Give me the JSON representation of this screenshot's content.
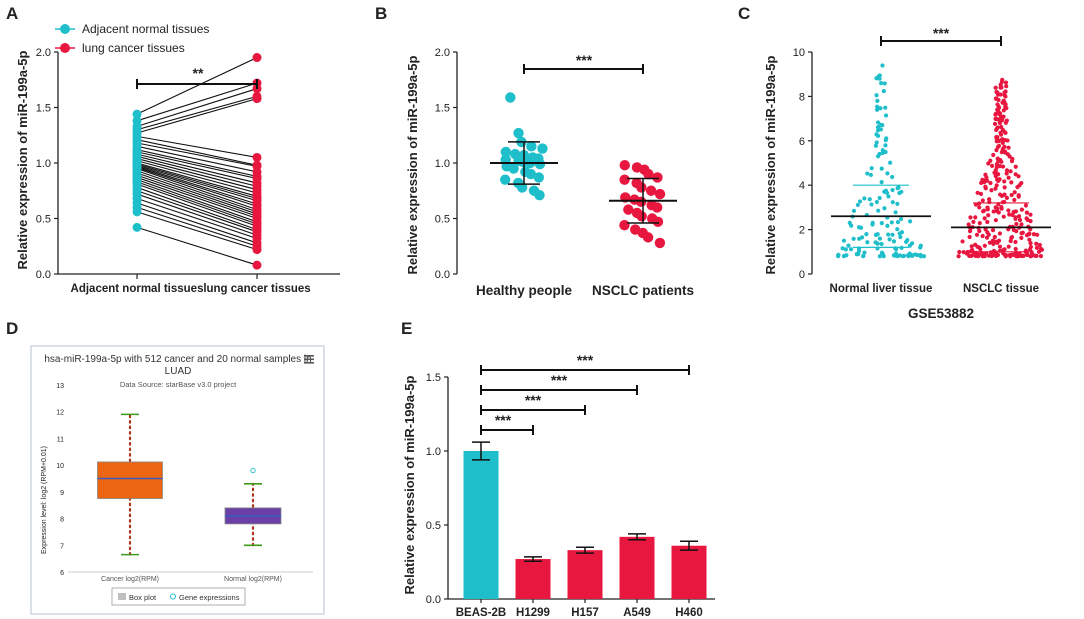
{
  "colors": {
    "teal": "#1ebfcb",
    "red": "#e8173f",
    "black": "#111111",
    "orange": "#ec6510",
    "purple": "#6a3fa6",
    "green": "#3f9a1a",
    "dotted_red": "#b0321b"
  },
  "chart_data": [
    {
      "panel": "A",
      "type": "scatter",
      "subtype": "paired",
      "ylabel": "Relative expression of miR-199a-5p",
      "ylim": [
        0,
        2.0
      ],
      "yticks": [
        "0.0",
        "0.5",
        "1.0",
        "1.5",
        "2.0"
      ],
      "categories": [
        "Adjacent normal tissues",
        "lung cancer tissues"
      ],
      "legend": [
        "Adjacent normal tissues",
        "lung cancer tissues"
      ],
      "significance": "**",
      "pairs": [
        [
          1.44,
          1.95
        ],
        [
          1.38,
          1.72
        ],
        [
          1.33,
          1.67
        ],
        [
          1.3,
          1.6
        ],
        [
          1.27,
          1.58
        ],
        [
          1.24,
          1.05
        ],
        [
          1.21,
          0.98
        ],
        [
          1.18,
          0.97
        ],
        [
          1.15,
          0.92
        ],
        [
          1.12,
          0.88
        ],
        [
          1.1,
          0.86
        ],
        [
          1.08,
          0.82
        ],
        [
          1.06,
          0.79
        ],
        [
          1.04,
          0.76
        ],
        [
          1.02,
          0.73
        ],
        [
          1.0,
          0.7
        ],
        [
          0.99,
          0.68
        ],
        [
          0.98,
          0.66
        ],
        [
          0.97,
          0.63
        ],
        [
          0.96,
          0.61
        ],
        [
          0.95,
          0.58
        ],
        [
          0.93,
          0.56
        ],
        [
          0.91,
          0.54
        ],
        [
          0.89,
          0.52
        ],
        [
          0.87,
          0.5
        ],
        [
          0.85,
          0.47
        ],
        [
          0.83,
          0.45
        ],
        [
          0.81,
          0.43
        ],
        [
          0.78,
          0.4
        ],
        [
          0.75,
          0.38
        ],
        [
          0.72,
          0.35
        ],
        [
          0.68,
          0.32
        ],
        [
          0.64,
          0.28
        ],
        [
          0.6,
          0.25
        ],
        [
          0.56,
          0.22
        ],
        [
          0.42,
          0.08
        ]
      ]
    },
    {
      "panel": "B",
      "type": "scatter",
      "ylabel": "Relative expression of miR-199a-5p",
      "ylim": [
        0,
        2.0
      ],
      "yticks": [
        "0.0",
        "0.5",
        "1.0",
        "1.5",
        "2.0"
      ],
      "categories": [
        "Healthy people",
        "NSCLC patients"
      ],
      "significance": "***",
      "series": [
        {
          "name": "Healthy people",
          "mean": 1.0,
          "sd": 0.19,
          "values": [
            1.59,
            1.27,
            1.19,
            1.15,
            1.13,
            1.1,
            1.08,
            1.07,
            1.05,
            1.04,
            1.03,
            1.02,
            1.01,
            1.0,
            0.99,
            0.97,
            0.95,
            0.92,
            0.9,
            0.87,
            0.85,
            0.82,
            0.78,
            0.75,
            0.71
          ]
        },
        {
          "name": "NSCLC patients",
          "mean": 0.66,
          "sd": 0.2,
          "values": [
            0.98,
            0.96,
            0.94,
            0.9,
            0.87,
            0.85,
            0.82,
            0.78,
            0.75,
            0.72,
            0.69,
            0.67,
            0.65,
            0.62,
            0.6,
            0.58,
            0.55,
            0.52,
            0.5,
            0.47,
            0.44,
            0.4,
            0.37,
            0.33,
            0.28
          ]
        }
      ]
    },
    {
      "panel": "C",
      "type": "scatter",
      "ylabel": "Relative expression of miR-199a-5p",
      "xlabel": "GSE53882",
      "ylim": [
        0,
        10
      ],
      "yticks": [
        "0",
        "2",
        "4",
        "6",
        "8",
        "10"
      ],
      "categories": [
        "Normal liver tissue",
        "NSCLC tissue"
      ],
      "significance": "***",
      "series": [
        {
          "name": "Normal liver tissue",
          "mean": 2.6,
          "sd": 1.4
        },
        {
          "name": "NSCLC tissue",
          "mean": 2.1,
          "sd": 1.1
        }
      ]
    },
    {
      "panel": "D",
      "type": "box",
      "title": "hsa-miR-199a-5p with 512 cancer and 20 normal samples in LUAD",
      "subtitle": "Data Source: starBase v3.0 project",
      "ylabel": "Expression level: log2 (RPM+0.01)",
      "ylim": [
        6,
        13
      ],
      "yticks": [
        "6",
        "7",
        "8",
        "9",
        "10",
        "11",
        "12",
        "13"
      ],
      "categories": [
        "Cancer log2(RPM)",
        "Normal log2(RPM)"
      ],
      "boxes": [
        {
          "name": "Cancer log2(RPM)",
          "min": 6.65,
          "q1": 8.75,
          "median": 9.5,
          "q3": 10.12,
          "max": 11.9,
          "outliers": []
        },
        {
          "name": "Normal log2(RPM)",
          "min": 7.0,
          "q1": 7.8,
          "median": 8.1,
          "q3": 8.4,
          "max": 9.3,
          "outliers": [
            9.8
          ]
        }
      ],
      "legend": [
        "Box plot",
        "Gene expressions"
      ],
      "menu_icon": "hamburger-menu-icon"
    },
    {
      "panel": "E",
      "type": "bar",
      "ylabel": "Relative expression of miR-199a-5p",
      "ylim": [
        0,
        1.5
      ],
      "yticks": [
        "0.0",
        "0.5",
        "1.0",
        "1.5"
      ],
      "categories": [
        "BEAS-2B",
        "H1299",
        "H157",
        "A549",
        "H460"
      ],
      "values": [
        1.0,
        0.27,
        0.33,
        0.42,
        0.36
      ],
      "errors": [
        0.06,
        0.015,
        0.02,
        0.02,
        0.03
      ],
      "significance": [
        "***",
        "***",
        "***",
        "***"
      ]
    }
  ],
  "panels": {
    "A": {
      "letter": "A",
      "legend_normal": "Adjacent normal tissues",
      "legend_cancer": "lung cancer tissues"
    },
    "B": {
      "letter": "B"
    },
    "C": {
      "letter": "C"
    },
    "D": {
      "letter": "D"
    },
    "E": {
      "letter": "E"
    }
  }
}
